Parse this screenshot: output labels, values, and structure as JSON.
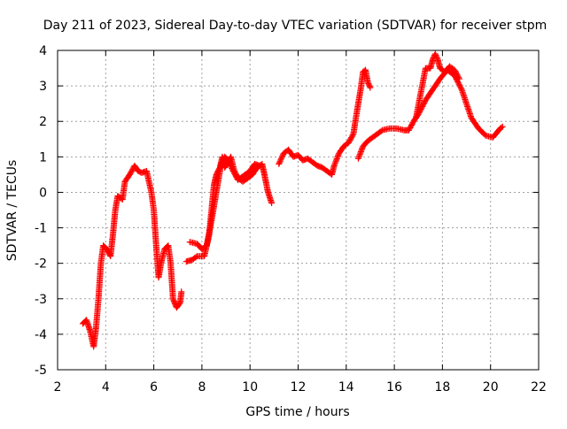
{
  "chart_data": {
    "type": "scatter",
    "title": "Day 211 of 2023, Sidereal Day-to-day VTEC variation (SDTVAR) for receiver stpm",
    "xlabel": "GPS time / hours",
    "ylabel": "SDTVAR / TECUs",
    "xlim": [
      2,
      22
    ],
    "ylim": [
      -5,
      4
    ],
    "xticks": [
      2,
      4,
      6,
      8,
      10,
      12,
      14,
      16,
      18,
      20,
      22
    ],
    "yticks": [
      -5,
      -4,
      -3,
      -2,
      -1,
      0,
      1,
      2,
      3,
      4
    ],
    "grid": true,
    "marker": "plus",
    "color": "#ff0000",
    "series": [
      {
        "segments": [
          [
            [
              3.05,
              -3.7
            ],
            [
              3.2,
              -3.6
            ],
            [
              3.35,
              -3.9
            ],
            [
              3.5,
              -4.35
            ],
            [
              3.6,
              -3.8
            ],
            [
              3.7,
              -3.0
            ],
            [
              3.8,
              -2.0
            ],
            [
              3.9,
              -1.5
            ],
            [
              4.05,
              -1.6
            ],
            [
              4.2,
              -1.8
            ],
            [
              4.3,
              -1.2
            ],
            [
              4.4,
              -0.5
            ],
            [
              4.5,
              -0.1
            ],
            [
              4.6,
              -0.15
            ],
            [
              4.7,
              -0.2
            ],
            [
              4.8,
              0.3
            ],
            [
              5.0,
              0.5
            ],
            [
              5.2,
              0.75
            ],
            [
              5.35,
              0.6
            ],
            [
              5.5,
              0.55
            ],
            [
              5.7,
              0.6
            ],
            [
              5.9,
              0.0
            ],
            [
              6.0,
              -0.5
            ],
            [
              6.1,
              -1.5
            ],
            [
              6.2,
              -2.4
            ],
            [
              6.3,
              -2.0
            ],
            [
              6.45,
              -1.6
            ],
            [
              6.6,
              -1.5
            ],
            [
              6.7,
              -2.0
            ],
            [
              6.8,
              -3.0
            ],
            [
              6.95,
              -3.25
            ],
            [
              7.1,
              -3.1
            ],
            [
              7.15,
              -2.8
            ]
          ],
          [
            [
              7.35,
              -1.95
            ],
            [
              7.6,
              -1.9
            ],
            [
              7.8,
              -1.8
            ],
            [
              8.1,
              -1.8
            ],
            [
              8.3,
              -1.2
            ],
            [
              8.4,
              -0.5
            ],
            [
              8.5,
              0.2
            ],
            [
              8.6,
              0.5
            ],
            [
              8.75,
              0.7
            ],
            [
              8.85,
              1.0
            ],
            [
              8.95,
              0.7
            ],
            [
              9.05,
              0.8
            ],
            [
              9.2,
              1.0
            ],
            [
              9.35,
              0.6
            ],
            [
              9.5,
              0.4
            ],
            [
              9.7,
              0.3
            ],
            [
              9.9,
              0.4
            ],
            [
              10.1,
              0.5
            ],
            [
              10.3,
              0.7
            ],
            [
              10.5,
              0.8
            ],
            [
              10.6,
              0.5
            ],
            [
              10.75,
              0.0
            ],
            [
              10.9,
              -0.3
            ]
          ],
          [
            [
              7.5,
              -1.4
            ],
            [
              7.8,
              -1.45
            ],
            [
              8.0,
              -1.6
            ],
            [
              8.2,
              -1.5
            ],
            [
              8.4,
              -0.8
            ],
            [
              8.5,
              -0.4
            ],
            [
              8.6,
              0.0
            ],
            [
              8.7,
              0.4
            ],
            [
              8.8,
              0.8
            ],
            [
              8.95,
              1.0
            ],
            [
              9.1,
              0.9
            ],
            [
              9.3,
              0.6
            ],
            [
              9.5,
              0.35
            ],
            [
              9.8,
              0.5
            ],
            [
              10.0,
              0.6
            ],
            [
              10.2,
              0.8
            ],
            [
              10.4,
              0.75
            ]
          ],
          [
            [
              11.2,
              0.8
            ],
            [
              11.4,
              1.1
            ],
            [
              11.6,
              1.2
            ],
            [
              11.8,
              1.0
            ],
            [
              12.0,
              1.05
            ],
            [
              12.2,
              0.9
            ],
            [
              12.4,
              0.95
            ],
            [
              12.6,
              0.85
            ],
            [
              12.8,
              0.75
            ],
            [
              13.0,
              0.7
            ],
            [
              13.2,
              0.6
            ],
            [
              13.4,
              0.5
            ],
            [
              13.5,
              0.75
            ],
            [
              13.7,
              1.1
            ],
            [
              13.9,
              1.3
            ],
            [
              14.1,
              1.4
            ],
            [
              14.3,
              1.65
            ],
            [
              14.45,
              2.3
            ],
            [
              14.6,
              2.9
            ],
            [
              14.7,
              3.4
            ],
            [
              14.8,
              3.45
            ],
            [
              14.9,
              3.1
            ],
            [
              15.0,
              2.95
            ]
          ],
          [
            [
              14.5,
              0.95
            ],
            [
              14.7,
              1.3
            ],
            [
              14.9,
              1.45
            ],
            [
              15.2,
              1.6
            ],
            [
              15.5,
              1.75
            ],
            [
              15.8,
              1.8
            ],
            [
              16.1,
              1.8
            ],
            [
              16.4,
              1.75
            ],
            [
              16.6,
              1.75
            ],
            [
              16.8,
              2.0
            ],
            [
              17.0,
              2.2
            ],
            [
              17.3,
              2.6
            ],
            [
              17.6,
              2.9
            ],
            [
              17.9,
              3.2
            ],
            [
              18.2,
              3.45
            ],
            [
              18.5,
              3.3
            ],
            [
              18.8,
              2.9
            ],
            [
              19.0,
              2.5
            ],
            [
              19.2,
              2.1
            ],
            [
              19.5,
              1.8
            ],
            [
              19.8,
              1.6
            ],
            [
              20.1,
              1.55
            ],
            [
              20.4,
              1.8
            ],
            [
              20.5,
              1.85
            ]
          ],
          [
            [
              16.9,
              2.1
            ],
            [
              17.1,
              2.8
            ],
            [
              17.3,
              3.5
            ],
            [
              17.5,
              3.5
            ],
            [
              17.6,
              3.75
            ],
            [
              17.7,
              3.9
            ],
            [
              17.8,
              3.75
            ],
            [
              17.9,
              3.5
            ],
            [
              18.1,
              3.4
            ],
            [
              18.3,
              3.55
            ],
            [
              18.5,
              3.45
            ],
            [
              18.7,
              3.2
            ]
          ]
        ]
      }
    ]
  }
}
